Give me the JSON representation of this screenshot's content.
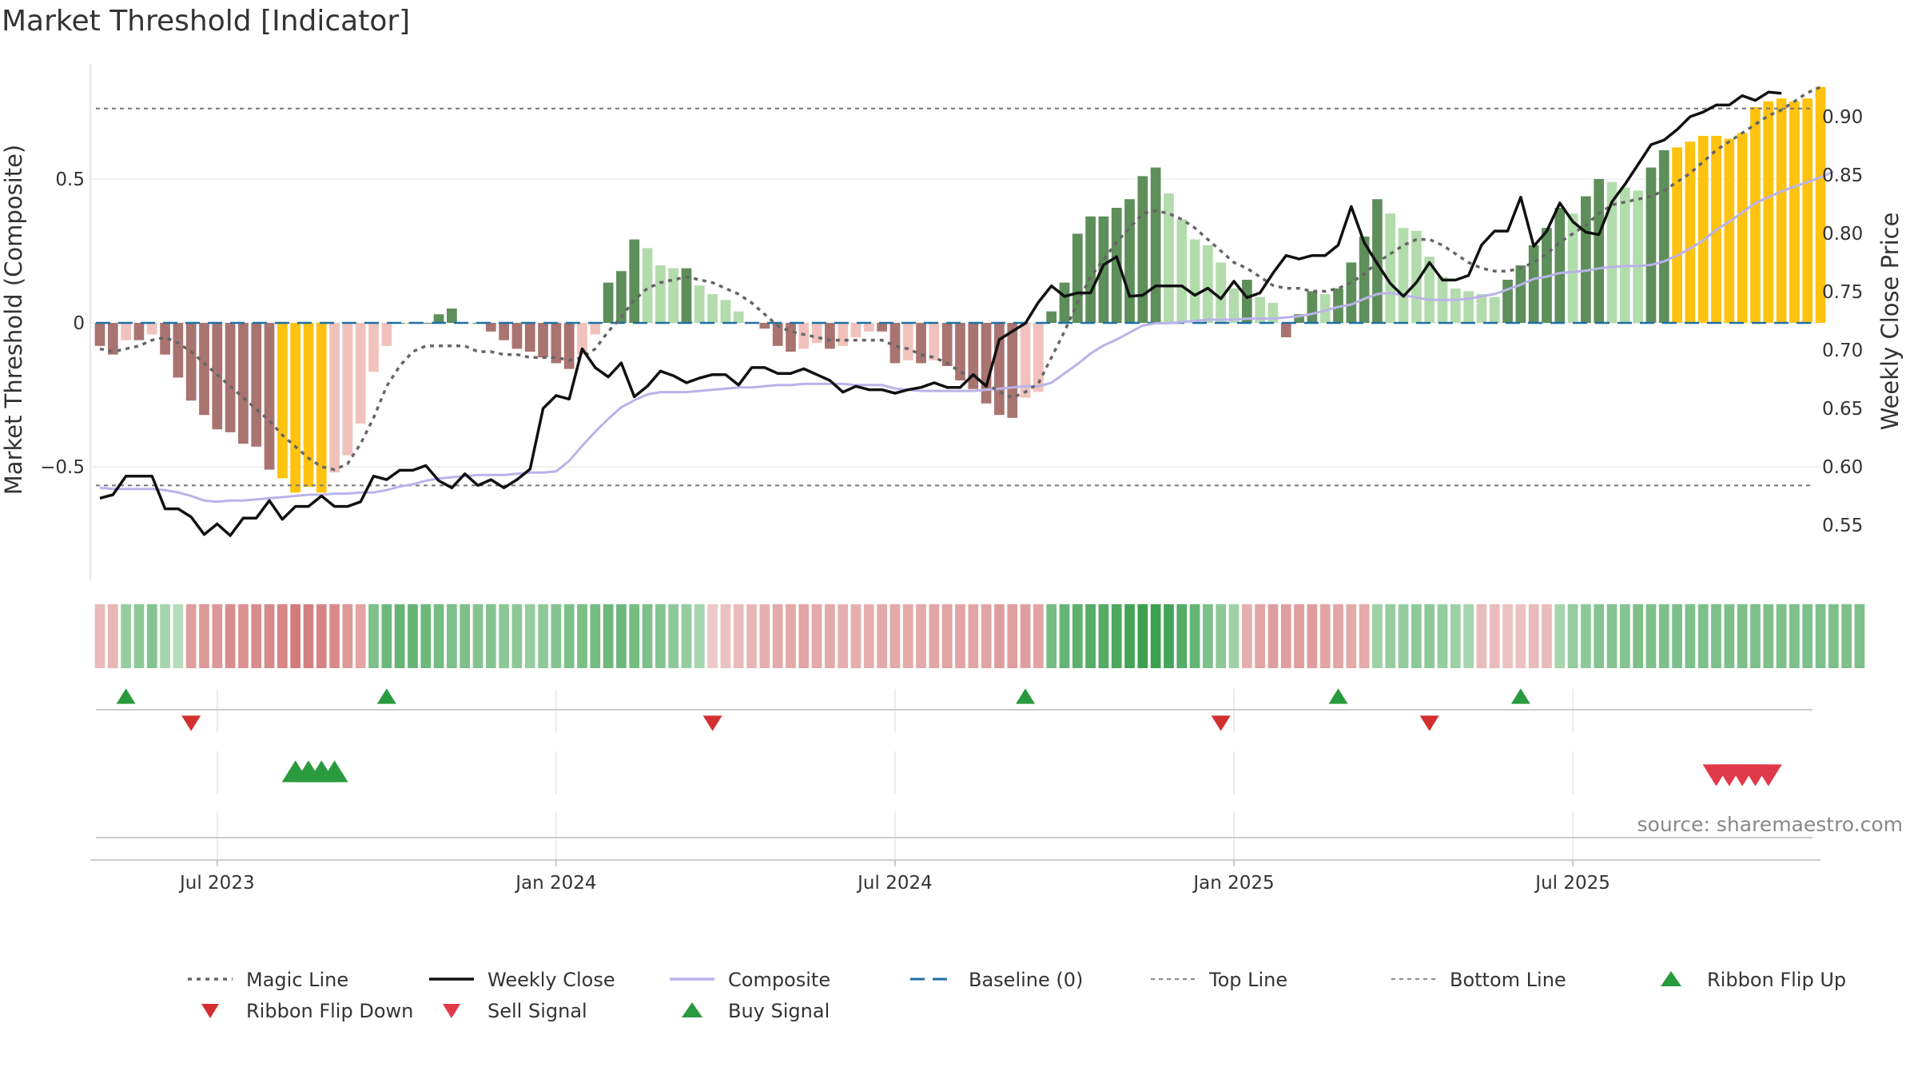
{
  "chart_data": {
    "type": "bar",
    "title": "Market Threshold [Indicator]",
    "ylabel": "Market Threshold (Composite)",
    "y2label": "Weekly Close Price",
    "source": "source: sharemaestro.com",
    "ylim": [
      -0.9,
      0.88
    ],
    "y2lim": [
      0.51,
      0.935
    ],
    "x_ticks": [
      "Jul 2023",
      "Jan 2024",
      "Jul 2024",
      "Jan 2025",
      "Jul 2025"
    ],
    "x_tick_weeks": [
      9,
      35,
      61,
      87,
      113
    ],
    "yticks": [
      {
        "v": 0.5,
        "t": "0.5"
      },
      {
        "v": 0,
        "t": "0"
      },
      {
        "v": -0.5,
        "t": "−0.5"
      }
    ],
    "y2ticks": [
      0.55,
      0.6,
      0.65,
      0.7,
      0.75,
      0.8,
      0.85,
      0.9
    ],
    "top_line": 0.745,
    "bottom_line": -0.565,
    "composite": [
      -0.08,
      -0.11,
      -0.06,
      -0.06,
      -0.04,
      -0.11,
      -0.19,
      -0.27,
      -0.32,
      -0.37,
      -0.38,
      -0.42,
      -0.43,
      -0.51,
      -0.54,
      -0.59,
      -0.57,
      -0.59,
      -0.52,
      -0.46,
      -0.35,
      -0.17,
      -0.08,
      0,
      0,
      0,
      0.03,
      0.05,
      0,
      0,
      -0.03,
      -0.06,
      -0.09,
      -0.1,
      -0.12,
      -0.14,
      -0.16,
      -0.11,
      -0.04,
      0.14,
      0.18,
      0.29,
      0.26,
      0.2,
      0.19,
      0.19,
      0.13,
      0.1,
      0.08,
      0.04,
      0,
      -0.02,
      -0.08,
      -0.1,
      -0.09,
      -0.07,
      -0.09,
      -0.08,
      -0.05,
      -0.03,
      -0.03,
      -0.14,
      -0.13,
      -0.14,
      -0.13,
      -0.15,
      -0.2,
      -0.23,
      -0.28,
      -0.32,
      -0.33,
      -0.26,
      -0.24,
      0.04,
      0.14,
      0.31,
      0.37,
      0.37,
      0.4,
      0.43,
      0.51,
      0.54,
      0.45,
      0.36,
      0.29,
      0.27,
      0.21,
      0.12,
      0.15,
      0.09,
      0.07,
      -0.05,
      0.03,
      0.11,
      0.1,
      0.12,
      0.21,
      0.3,
      0.43,
      0.38,
      0.33,
      0.32,
      0.23,
      0.16,
      0.12,
      0.11,
      0.1,
      0.09,
      0.15,
      0.2,
      0.27,
      0.33,
      0.4,
      0.38,
      0.44,
      0.5,
      0.49,
      0.47,
      0.46,
      0.54,
      0.6,
      0.61,
      0.63,
      0.65,
      0.65,
      0.64,
      0.66,
      0.75,
      0.77,
      0.78,
      0.77,
      0.78,
      0.82
    ],
    "magic_line": [
      -0.09,
      -0.1,
      -0.09,
      -0.08,
      -0.06,
      -0.05,
      -0.07,
      -0.1,
      -0.14,
      -0.18,
      -0.22,
      -0.26,
      -0.3,
      -0.34,
      -0.39,
      -0.43,
      -0.47,
      -0.5,
      -0.51,
      -0.49,
      -0.42,
      -0.33,
      -0.22,
      -0.15,
      -0.1,
      -0.08,
      -0.08,
      -0.08,
      -0.08,
      -0.1,
      -0.1,
      -0.11,
      -0.11,
      -0.12,
      -0.12,
      -0.12,
      -0.13,
      -0.12,
      -0.09,
      -0.03,
      0.02,
      0.08,
      0.12,
      0.14,
      0.15,
      0.16,
      0.15,
      0.14,
      0.12,
      0.1,
      0.07,
      0.03,
      -0.01,
      -0.03,
      -0.04,
      -0.05,
      -0.06,
      -0.06,
      -0.06,
      -0.06,
      -0.06,
      -0.08,
      -0.09,
      -0.11,
      -0.12,
      -0.14,
      -0.17,
      -0.19,
      -0.21,
      -0.24,
      -0.26,
      -0.24,
      -0.21,
      -0.12,
      -0.03,
      0.07,
      0.16,
      0.22,
      0.28,
      0.33,
      0.38,
      0.39,
      0.38,
      0.36,
      0.33,
      0.29,
      0.25,
      0.21,
      0.19,
      0.16,
      0.13,
      0.12,
      0.12,
      0.11,
      0.11,
      0.12,
      0.14,
      0.17,
      0.21,
      0.24,
      0.27,
      0.29,
      0.29,
      0.27,
      0.24,
      0.21,
      0.19,
      0.18,
      0.18,
      0.19,
      0.21,
      0.24,
      0.28,
      0.31,
      0.34,
      0.38,
      0.41,
      0.42,
      0.43,
      0.44,
      0.46,
      0.49,
      0.52,
      0.56,
      0.6,
      0.63,
      0.66,
      0.69,
      0.72,
      0.74,
      0.77,
      0.8,
      0.82
    ],
    "composite_line": [
      0.582,
      0.581,
      0.581,
      0.581,
      0.581,
      0.58,
      0.578,
      0.575,
      0.571,
      0.57,
      0.571,
      0.571,
      0.572,
      0.573,
      0.574,
      0.575,
      0.576,
      0.576,
      0.577,
      0.577,
      0.578,
      0.578,
      0.58,
      0.583,
      0.585,
      0.588,
      0.59,
      0.591,
      0.592,
      0.593,
      0.593,
      0.593,
      0.594,
      0.595,
      0.595,
      0.596,
      0.605,
      0.618,
      0.63,
      0.641,
      0.651,
      0.657,
      0.662,
      0.664,
      0.664,
      0.664,
      0.665,
      0.666,
      0.667,
      0.668,
      0.668,
      0.669,
      0.67,
      0.67,
      0.671,
      0.671,
      0.671,
      0.671,
      0.67,
      0.67,
      0.67,
      0.667,
      0.666,
      0.665,
      0.665,
      0.665,
      0.665,
      0.665,
      0.666,
      0.667,
      0.668,
      0.669,
      0.669,
      0.672,
      0.68,
      0.688,
      0.697,
      0.704,
      0.709,
      0.715,
      0.721,
      0.723,
      0.723,
      0.724,
      0.725,
      0.726,
      0.726,
      0.726,
      0.727,
      0.727,
      0.727,
      0.728,
      0.729,
      0.731,
      0.734,
      0.737,
      0.739,
      0.744,
      0.748,
      0.749,
      0.747,
      0.745,
      0.743,
      0.743,
      0.743,
      0.744,
      0.746,
      0.748,
      0.752,
      0.756,
      0.761,
      0.763,
      0.766,
      0.767,
      0.768,
      0.77,
      0.771,
      0.772,
      0.772,
      0.773,
      0.776,
      0.781,
      0.787,
      0.794,
      0.803,
      0.81,
      0.818,
      0.826,
      0.831,
      0.836,
      0.84,
      0.844,
      0.848,
      0.853
    ],
    "weekly_close": [
      0.573,
      0.576,
      0.592,
      0.592,
      0.592,
      0.564,
      0.564,
      0.557,
      0.542,
      0.551,
      0.541,
      0.556,
      0.556,
      0.571,
      0.555,
      0.566,
      0.566,
      0.575,
      0.566,
      0.566,
      0.57,
      0.592,
      0.589,
      0.597,
      0.597,
      0.601,
      0.588,
      0.582,
      0.594,
      0.584,
      0.589,
      0.582,
      0.589,
      0.598,
      0.65,
      0.661,
      0.658,
      0.701,
      0.685,
      0.677,
      0.689,
      0.66,
      0.669,
      0.682,
      0.678,
      0.672,
      0.676,
      0.679,
      0.679,
      0.67,
      0.685,
      0.685,
      0.68,
      0.68,
      0.684,
      0.679,
      0.674,
      0.664,
      0.669,
      0.666,
      0.666,
      0.663,
      0.666,
      0.668,
      0.672,
      0.668,
      0.668,
      0.679,
      0.669,
      0.709,
      0.716,
      0.723,
      0.741,
      0.755,
      0.746,
      0.749,
      0.749,
      0.773,
      0.78,
      0.746,
      0.747,
      0.755,
      0.755,
      0.755,
      0.747,
      0.753,
      0.744,
      0.759,
      0.745,
      0.749,
      0.766,
      0.781,
      0.778,
      0.781,
      0.781,
      0.79,
      0.823,
      0.792,
      0.774,
      0.757,
      0.746,
      0.758,
      0.775,
      0.76,
      0.76,
      0.764,
      0.79,
      0.802,
      0.802,
      0.831,
      0.789,
      0.802,
      0.826,
      0.81,
      0.801,
      0.799,
      0.827,
      0.842,
      0.859,
      0.876,
      0.88,
      0.889,
      0.9,
      0.904,
      0.91,
      0.91,
      0.918,
      0.914,
      0.921,
      0.92
    ],
    "ribbon_strength": [
      -0.3,
      -0.35,
      0.45,
      0.5,
      0.55,
      0.35,
      0.25,
      -0.55,
      -0.6,
      -0.6,
      -0.7,
      -0.65,
      -0.7,
      -0.72,
      -0.75,
      -0.85,
      -0.8,
      -0.78,
      -0.72,
      -0.6,
      -0.5,
      0.6,
      0.7,
      0.75,
      0.75,
      0.7,
      0.65,
      0.6,
      0.6,
      0.55,
      0.55,
      0.5,
      0.5,
      0.45,
      0.5,
      0.55,
      0.6,
      0.62,
      0.65,
      0.7,
      0.7,
      0.65,
      0.6,
      0.55,
      0.5,
      0.45,
      0.35,
      -0.2,
      -0.25,
      -0.3,
      -0.35,
      -0.4,
      -0.45,
      -0.45,
      -0.5,
      -0.45,
      -0.45,
      -0.4,
      -0.4,
      -0.4,
      -0.45,
      -0.45,
      -0.45,
      -0.45,
      -0.5,
      -0.5,
      -0.5,
      -0.5,
      -0.5,
      -0.55,
      -0.55,
      -0.55,
      -0.5,
      0.65,
      0.75,
      0.8,
      0.85,
      0.85,
      0.9,
      0.95,
      1.0,
      1.0,
      0.95,
      0.85,
      0.75,
      0.6,
      0.5,
      0.4,
      -0.4,
      -0.5,
      -0.55,
      -0.55,
      -0.55,
      -0.55,
      -0.5,
      -0.5,
      -0.45,
      -0.45,
      0.4,
      0.45,
      0.45,
      0.5,
      0.5,
      0.45,
      0.4,
      0.35,
      -0.3,
      -0.3,
      -0.25,
      -0.25,
      -0.3,
      -0.3,
      0.35,
      0.45,
      0.5,
      0.55,
      0.55,
      0.55,
      0.6,
      0.6,
      0.6,
      0.6,
      0.6,
      0.6,
      0.6,
      0.6,
      0.6,
      0.6,
      0.6,
      0.6,
      0.6,
      0.6,
      0.6,
      0.6,
      0.6,
      0.6
    ],
    "flip_up_weeks": [
      2,
      22,
      71,
      95,
      109
    ],
    "flip_down_weeks": [
      7,
      47,
      86,
      102
    ],
    "buy_signal_weeks": [
      15,
      16,
      17,
      18
    ],
    "sell_signal_weeks": [
      124,
      125,
      126,
      127,
      128
    ],
    "legend": [
      {
        "label": "Magic Line",
        "kind": "dotted",
        "color": "#666666"
      },
      {
        "label": "Weekly Close",
        "kind": "solid",
        "color": "#111111"
      },
      {
        "label": "Composite",
        "kind": "solid",
        "color": "#b9b3ea"
      },
      {
        "label": "Baseline (0)",
        "kind": "dashed",
        "color": "#1f6fa3"
      },
      {
        "label": "Top Line",
        "kind": "fine-dashed",
        "color": "#888888"
      },
      {
        "label": "Bottom Line",
        "kind": "fine-dashed",
        "color": "#888888"
      },
      {
        "label": "Ribbon Flip Up",
        "kind": "tri-up",
        "color": "#2a9a3e"
      },
      {
        "label": "Ribbon Flip Down",
        "kind": "tri-down",
        "color": "#d22f2f"
      },
      {
        "label": "Sell Signal",
        "kind": "tri-down",
        "color": "#e03a4a"
      },
      {
        "label": "Buy Signal",
        "kind": "tri-up",
        "color": "#2a9a3e"
      }
    ],
    "colors": {
      "bear_strong": "#a97470",
      "bear_light": "#f1c2bc",
      "bull_strong": "#5e8f5a",
      "bull_light": "#b3dcac",
      "extreme": "#ffc20e",
      "magic": "#666666",
      "close": "#111111",
      "composite_line": "#b9b3ea",
      "baseline": "#1f6fa3",
      "flip_up": "#2a9a3e",
      "flip_down": "#d22f2f",
      "sell": "#e03a4a",
      "buy": "#2a9a3e"
    }
  }
}
